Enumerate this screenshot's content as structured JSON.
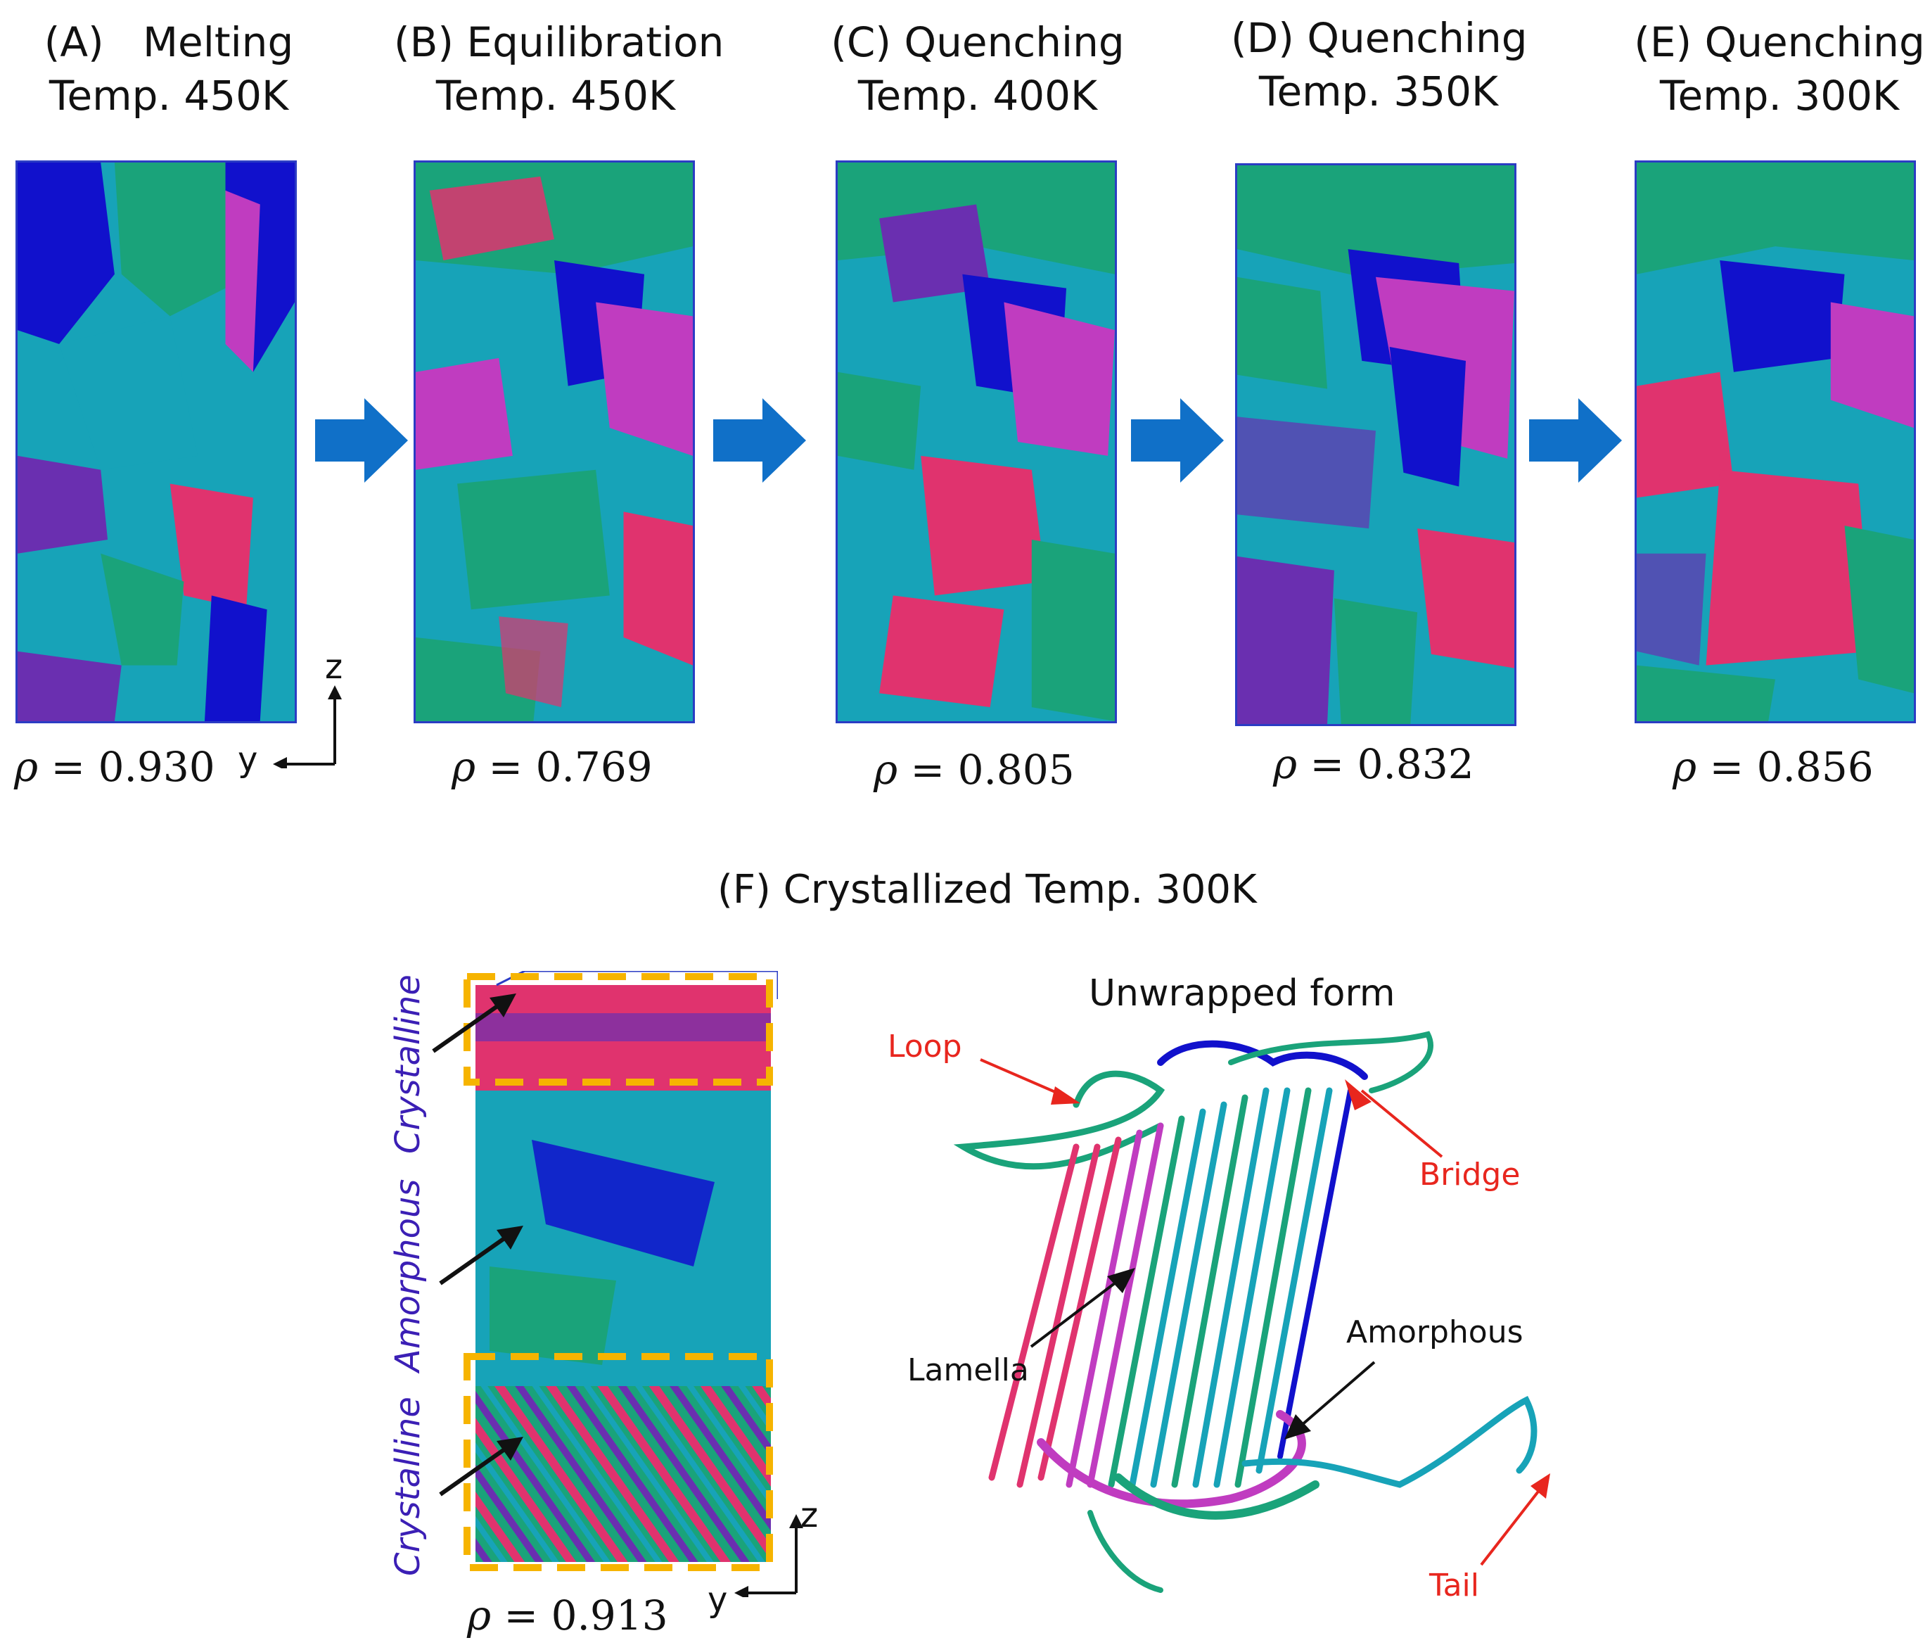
{
  "panels": [
    {
      "letter": "(A)",
      "stage": "Melting",
      "temp": "Temp. 450K",
      "rho_symbol": "ρ",
      "rho_value": "0.930"
    },
    {
      "letter": "(B)",
      "stage": "Equilibration",
      "temp": "Temp. 450K",
      "rho_symbol": "ρ",
      "rho_value": "0.769"
    },
    {
      "letter": "(C)",
      "stage": "Quenching",
      "temp": "Temp. 400K",
      "rho_symbol": "ρ",
      "rho_value": "0.805"
    },
    {
      "letter": "(D)",
      "stage": "Quenching",
      "temp": "Temp. 350K",
      "rho_symbol": "ρ",
      "rho_value": "0.832"
    },
    {
      "letter": "(E)",
      "stage": "Quenching",
      "temp": "Temp. 300K",
      "rho_symbol": "ρ",
      "rho_value": "0.856"
    }
  ],
  "axes_top": {
    "z": "z",
    "y": "y"
  },
  "panel_f": {
    "title": "(F) Crystallized Temp. 300K",
    "regions": [
      "Crystalline",
      "Amorphous",
      "Crystalline"
    ],
    "rho_symbol": "ρ",
    "rho_value": "0.913",
    "axes": {
      "z": "z",
      "y": "y"
    },
    "unwrapped_title": "Unwrapped form",
    "labels": {
      "loop": "Loop",
      "bridge": "Bridge",
      "lamella": "Lamella",
      "amorphous": "Amorphous",
      "tail": "Tail"
    }
  },
  "colors": {
    "cyan": "#17a3b8",
    "green": "#1aa37a",
    "blue": "#1111cc",
    "purple": "#6a2fb0",
    "magenta": "#c03cc0",
    "pink": "#e0336e",
    "arrow_blue": "#1070c8",
    "frame_orange": "#f6b400",
    "label_red": "#e8261e",
    "label_purple": "#3b1fb5"
  }
}
